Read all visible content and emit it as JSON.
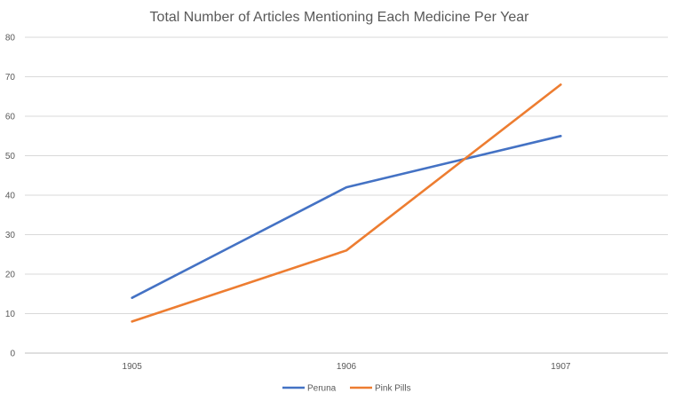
{
  "chart_data": {
    "type": "line",
    "title": "Total Number of Articles Mentioning Each Medicine Per Year",
    "xlabel": "",
    "ylabel": "",
    "categories": [
      "1905",
      "1906",
      "1907"
    ],
    "ylim": [
      0,
      80
    ],
    "yticks": [
      "0",
      "10",
      "20",
      "30",
      "40",
      "50",
      "60",
      "70",
      "80"
    ],
    "grid": true,
    "legend_position": "bottom",
    "series": [
      {
        "name": "Peruna",
        "color": "#4472c4",
        "values": [
          14,
          42,
          55
        ]
      },
      {
        "name": "Pink Pills",
        "color": "#ed7d31",
        "values": [
          8,
          26,
          68
        ]
      }
    ]
  }
}
